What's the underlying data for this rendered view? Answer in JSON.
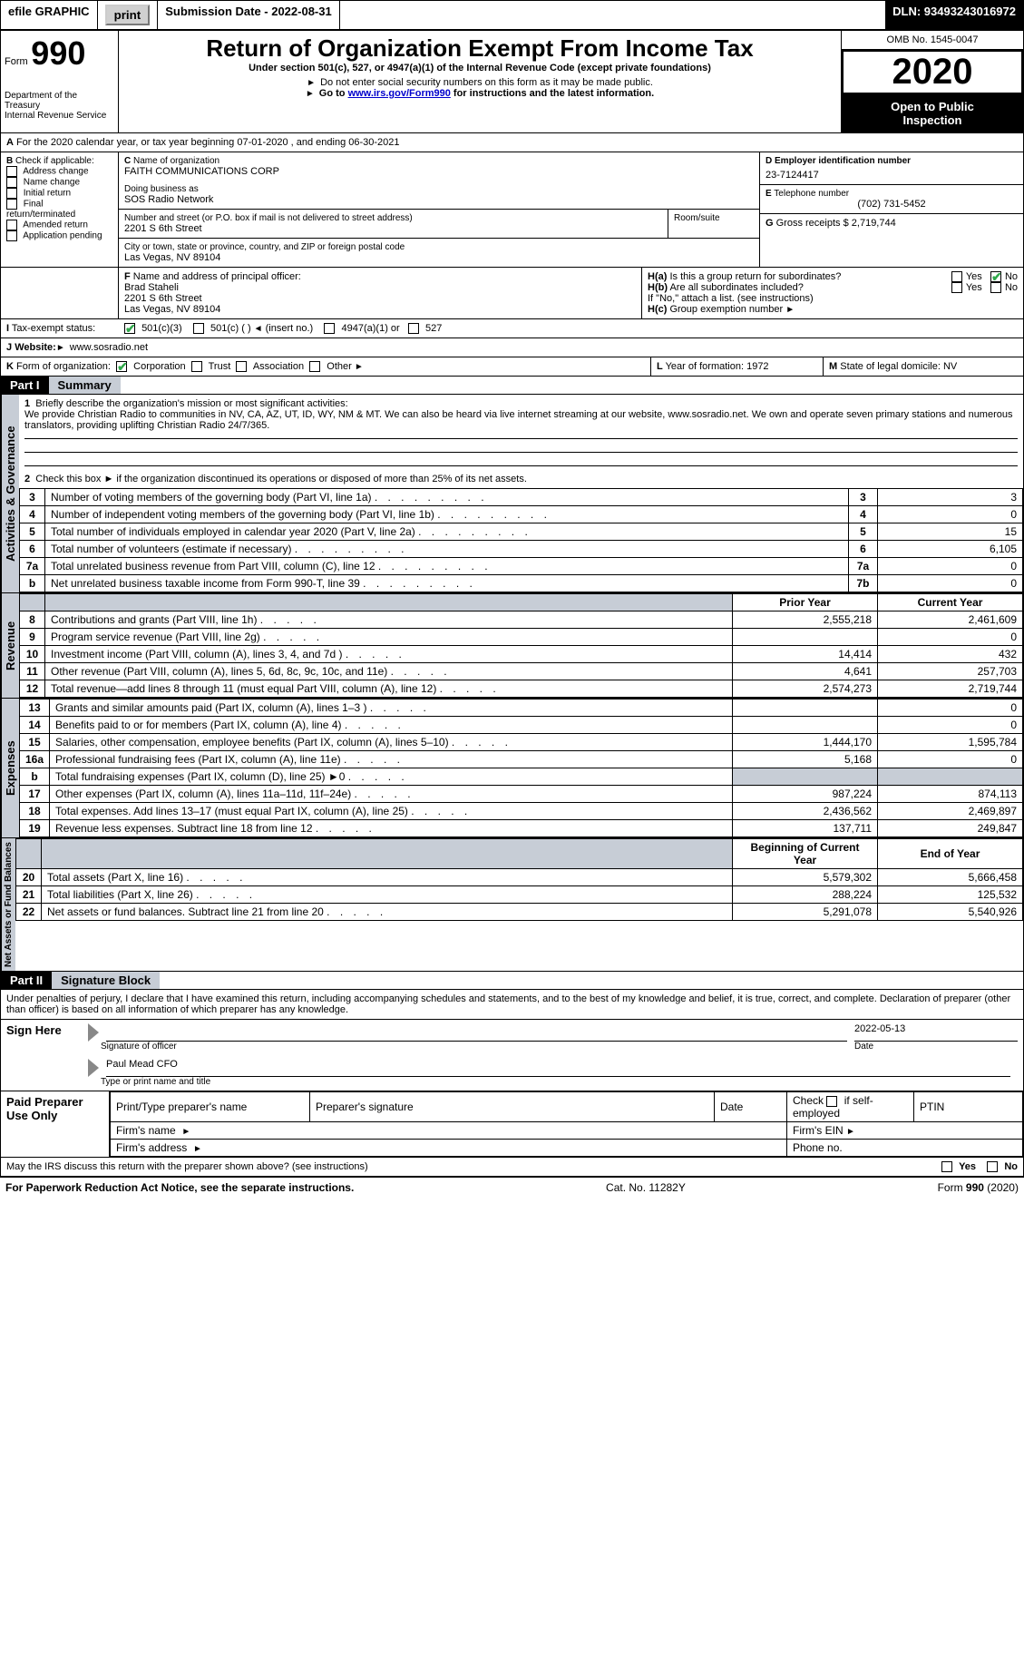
{
  "colors": {
    "black": "#000000",
    "white": "#ffffff",
    "section_shade": "#c7cdd6",
    "button_face": "#d0d0d0",
    "check_green": "#2fa84a",
    "link": "#0000cc"
  },
  "typography": {
    "base_font": "Arial, Helvetica, sans-serif",
    "base_size_pt": 10,
    "title_size_pt": 20,
    "year_size_pt": 30
  },
  "topbar": {
    "efile": "efile GRAPHIC",
    "print_btn": "print",
    "submission_label": "Submission Date - 2022-08-31",
    "dln": "DLN: 93493243016972"
  },
  "header": {
    "form_word": "Form",
    "form_number": "990",
    "dept1": "Department of the Treasury",
    "dept2": "Internal Revenue Service",
    "title": "Return of Organization Exempt From Income Tax",
    "subtitle": "Under section 501(c), 527, or 4947(a)(1) of the Internal Revenue Code (except private foundations)",
    "note1": "Do not enter social security numbers on this form as it may be made public.",
    "note2_pre": "Go to ",
    "note2_link": "www.irs.gov/Form990",
    "note2_post": " for instructions and the latest information.",
    "omb": "OMB No. 1545-0047",
    "year": "2020",
    "otpi1": "Open to Public",
    "otpi2": "Inspection"
  },
  "lineA": "For the 2020 calendar year, or tax year beginning 07-01-2020    , and ending 06-30-2021",
  "boxB": {
    "label": "Check if applicable:",
    "opts": [
      "Address change",
      "Name change",
      "Initial return",
      "Final return/terminated",
      "Amended return",
      "Application pending"
    ],
    "letter": "B"
  },
  "boxC": {
    "letter": "C",
    "name_label": "Name of organization",
    "name": "FAITH COMMUNICATIONS CORP",
    "dba_label": "Doing business as",
    "dba": "SOS Radio Network",
    "addr_label": "Number and street (or P.O. box if mail is not delivered to street address)",
    "room_label": "Room/suite",
    "addr": "2201 S 6th Street",
    "city_label": "City or town, state or province, country, and ZIP or foreign postal code",
    "city": "Las Vegas, NV   89104"
  },
  "boxD": {
    "letter": "D",
    "label": "Employer identification number",
    "value": "23-7124417"
  },
  "boxE": {
    "letter": "E",
    "label": "Telephone number",
    "value": "(702) 731-5452"
  },
  "boxG": {
    "letter": "G",
    "label": "Gross receipts $",
    "value": "2,719,744"
  },
  "boxF": {
    "letter": "F",
    "label": "Name and address of principal officer:",
    "name": "Brad Staheli",
    "addr1": "2201 S 6th Street",
    "addr2": "Las Vegas, NV   89104"
  },
  "boxH": {
    "a_label": "Is this a group return for subordinates?",
    "a_letter": "H(a)",
    "b_label": "Are all subordinates included?",
    "b_letter": "H(b)",
    "note": "If \"No,\" attach a list. (see instructions)",
    "c_label": "Group exemption number",
    "c_letter": "H(c)",
    "yes": "Yes",
    "no": "No"
  },
  "boxI": {
    "letter": "I",
    "label": "Tax-exempt status:",
    "opts": [
      "501(c)(3)",
      "501(c) (  )",
      "(insert no.)",
      "4947(a)(1) or",
      "527"
    ]
  },
  "boxJ": {
    "letter": "J",
    "label": "Website:",
    "value": "www.sosradio.net"
  },
  "boxK": {
    "letter": "K",
    "label": "Form of organization:",
    "opts": [
      "Corporation",
      "Trust",
      "Association",
      "Other"
    ]
  },
  "boxL": {
    "letter": "L",
    "label": "Year of formation:",
    "value": "1972"
  },
  "boxM": {
    "letter": "M",
    "label": "State of legal domicile:",
    "value": "NV"
  },
  "part1": {
    "tag": "Part I",
    "label": "Summary",
    "line1_label": "Briefly describe the organization's mission or most significant activities:",
    "line1_text": "We provide Christian Radio to communities in NV, CA, AZ, UT, ID, WY, NM & MT. We can also be heard via live internet streaming at our website, www.sosradio.net. We own and operate seven primary stations and numerous translators, providing uplifting Christian Radio 24/7/365.",
    "line2": "Check this box ►  if the organization discontinued its operations or disposed of more than 25% of its net assets.",
    "gov_lines": [
      {
        "n": "3",
        "text": "Number of voting members of the governing body (Part VI, line 1a)",
        "box": "3",
        "val": "3"
      },
      {
        "n": "4",
        "text": "Number of independent voting members of the governing body (Part VI, line 1b)",
        "box": "4",
        "val": "0"
      },
      {
        "n": "5",
        "text": "Total number of individuals employed in calendar year 2020 (Part V, line 2a)",
        "box": "5",
        "val": "15"
      },
      {
        "n": "6",
        "text": "Total number of volunteers (estimate if necessary)",
        "box": "6",
        "val": "6,105"
      },
      {
        "n": "7a",
        "text": "Total unrelated business revenue from Part VIII, column (C), line 12",
        "box": "7a",
        "val": "0"
      },
      {
        "n": "b",
        "text": "Net unrelated business taxable income from Form 990-T, line 39",
        "box": "7b",
        "val": "0"
      }
    ],
    "prior_year_hdr": "Prior Year",
    "current_year_hdr": "Current Year",
    "rev_lines": [
      {
        "n": "8",
        "text": "Contributions and grants (Part VIII, line 1h)",
        "py": "2,555,218",
        "cy": "2,461,609"
      },
      {
        "n": "9",
        "text": "Program service revenue (Part VIII, line 2g)",
        "py": "",
        "cy": "0"
      },
      {
        "n": "10",
        "text": "Investment income (Part VIII, column (A), lines 3, 4, and 7d )",
        "py": "14,414",
        "cy": "432"
      },
      {
        "n": "11",
        "text": "Other revenue (Part VIII, column (A), lines 5, 6d, 8c, 9c, 10c, and 11e)",
        "py": "4,641",
        "cy": "257,703"
      },
      {
        "n": "12",
        "text": "Total revenue—add lines 8 through 11 (must equal Part VIII, column (A), line 12)",
        "py": "2,574,273",
        "cy": "2,719,744"
      }
    ],
    "exp_lines": [
      {
        "n": "13",
        "text": "Grants and similar amounts paid (Part IX, column (A), lines 1–3 )",
        "py": "",
        "cy": "0"
      },
      {
        "n": "14",
        "text": "Benefits paid to or for members (Part IX, column (A), line 4)",
        "py": "",
        "cy": "0"
      },
      {
        "n": "15",
        "text": "Salaries, other compensation, employee benefits (Part IX, column (A), lines 5–10)",
        "py": "1,444,170",
        "cy": "1,595,784"
      },
      {
        "n": "16a",
        "text": "Professional fundraising fees (Part IX, column (A), line 11e)",
        "py": "5,168",
        "cy": "0"
      },
      {
        "n": "b",
        "text": "Total fundraising expenses (Part IX, column (D), line 25) ►0",
        "py": "shade",
        "cy": "shade"
      },
      {
        "n": "17",
        "text": "Other expenses (Part IX, column (A), lines 11a–11d, 11f–24e)",
        "py": "987,224",
        "cy": "874,113"
      },
      {
        "n": "18",
        "text": "Total expenses. Add lines 13–17 (must equal Part IX, column (A), line 25)",
        "py": "2,436,562",
        "cy": "2,469,897"
      },
      {
        "n": "19",
        "text": "Revenue less expenses. Subtract line 18 from line 12",
        "py": "137,711",
        "cy": "249,847"
      }
    ],
    "na_hdr1": "Beginning of Current Year",
    "na_hdr2": "End of Year",
    "na_lines": [
      {
        "n": "20",
        "text": "Total assets (Part X, line 16)",
        "py": "5,579,302",
        "cy": "5,666,458"
      },
      {
        "n": "21",
        "text": "Total liabilities (Part X, line 26)",
        "py": "288,224",
        "cy": "125,532"
      },
      {
        "n": "22",
        "text": "Net assets or fund balances. Subtract line 21 from line 20",
        "py": "5,291,078",
        "cy": "5,540,926"
      }
    ],
    "side_ag": "Activities & Governance",
    "side_rev": "Revenue",
    "side_exp": "Expenses",
    "side_na": "Net Assets or Fund Balances"
  },
  "part2": {
    "tag": "Part II",
    "label": "Signature Block",
    "jurat": "Under penalties of perjury, I declare that I have examined this return, including accompanying schedules and statements, and to the best of my knowledge and belief, it is true, correct, and complete. Declaration of preparer (other than officer) is based on all information of which preparer has any knowledge.",
    "sign_here": "Sign Here",
    "sig_label": "Signature of officer",
    "date_label": "Date",
    "sig_date": "2022-05-13",
    "name_title": "Paul Mead CFO",
    "name_title_label": "Type or print name and title",
    "paid": "Paid Preparer Use Only",
    "p_name": "Print/Type preparer's name",
    "p_sig": "Preparer's signature",
    "p_date": "Date",
    "p_self": "Check        if self-employed",
    "p_ptin": "PTIN",
    "firm_name": "Firm's name",
    "firm_ein": "Firm's EIN",
    "firm_addr": "Firm's address",
    "phone": "Phone no.",
    "discuss": "May the IRS discuss this return with the preparer shown above? (see instructions)",
    "yes": "Yes",
    "no": "No"
  },
  "footer": {
    "pra": "For Paperwork Reduction Act Notice, see the separate instructions.",
    "cat": "Cat. No. 11282Y",
    "form": "Form 990 (2020)"
  }
}
